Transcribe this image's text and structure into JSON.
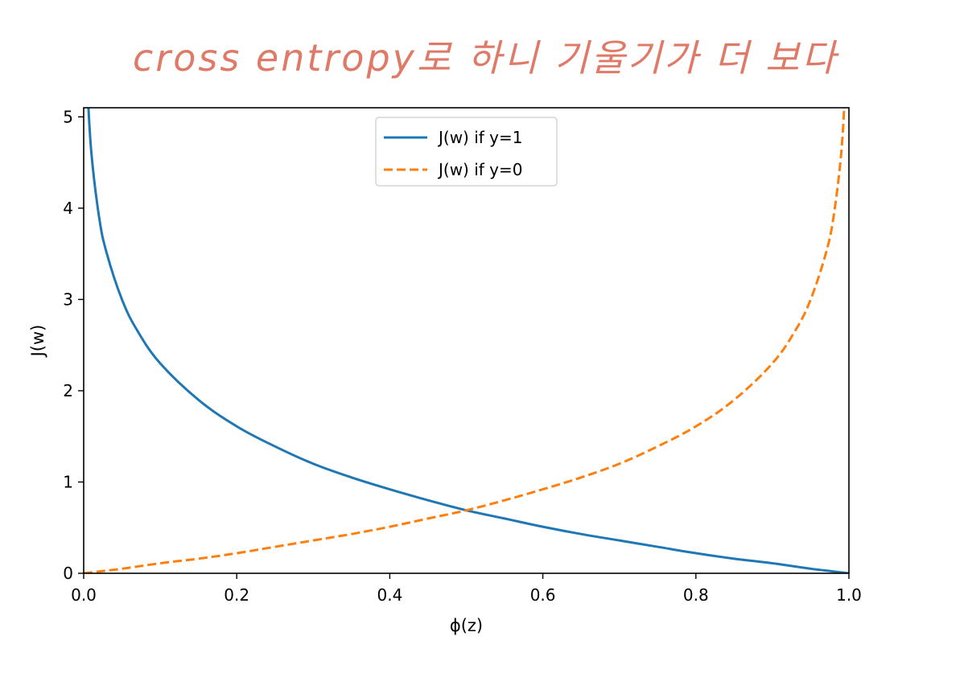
{
  "annotation": {
    "text": "cross entropy로 하니 기울기가 더 보다",
    "color": "#e07a68"
  },
  "chart_data": {
    "type": "line",
    "title": "",
    "xlabel": "ϕ(z)",
    "ylabel": "J(w)",
    "xlim": [
      0.0,
      1.0
    ],
    "ylim": [
      0,
      5.1
    ],
    "xticks": [
      0.0,
      0.2,
      0.4,
      0.6,
      0.8,
      1.0
    ],
    "xtick_labels": [
      "0.0",
      "0.2",
      "0.4",
      "0.6",
      "0.8",
      "1.0"
    ],
    "yticks": [
      0,
      1,
      2,
      3,
      4,
      5
    ],
    "ytick_labels": [
      "0",
      "1",
      "2",
      "3",
      "4",
      "5"
    ],
    "grid": false,
    "legend_position": "top-center",
    "series": [
      {
        "name": "J(w) if y=1",
        "style": "solid",
        "color": "#1f77b4",
        "x": [
          0.005,
          0.01,
          0.02,
          0.03,
          0.05,
          0.07,
          0.1,
          0.15,
          0.2,
          0.25,
          0.3,
          0.35,
          0.4,
          0.45,
          0.5,
          0.55,
          0.6,
          0.65,
          0.7,
          0.75,
          0.8,
          0.85,
          0.9,
          0.95,
          0.99,
          1.0
        ],
        "y": [
          5.3,
          4.61,
          3.91,
          3.51,
          3.0,
          2.66,
          2.3,
          1.9,
          1.61,
          1.39,
          1.2,
          1.05,
          0.92,
          0.8,
          0.69,
          0.6,
          0.51,
          0.43,
          0.36,
          0.29,
          0.22,
          0.16,
          0.11,
          0.05,
          0.01,
          0.0
        ]
      },
      {
        "name": "J(w) if y=0",
        "style": "dashed",
        "color": "#ff7f0e",
        "x": [
          0.0,
          0.01,
          0.05,
          0.1,
          0.15,
          0.2,
          0.25,
          0.3,
          0.35,
          0.4,
          0.45,
          0.5,
          0.55,
          0.6,
          0.65,
          0.7,
          0.75,
          0.8,
          0.85,
          0.9,
          0.93,
          0.95,
          0.97,
          0.98,
          0.99,
          0.995
        ],
        "y": [
          0.0,
          0.01,
          0.05,
          0.11,
          0.16,
          0.22,
          0.29,
          0.36,
          0.43,
          0.51,
          0.6,
          0.69,
          0.8,
          0.92,
          1.05,
          1.2,
          1.39,
          1.61,
          1.9,
          2.3,
          2.66,
          3.0,
          3.51,
          3.91,
          4.61,
          5.3
        ]
      }
    ]
  }
}
